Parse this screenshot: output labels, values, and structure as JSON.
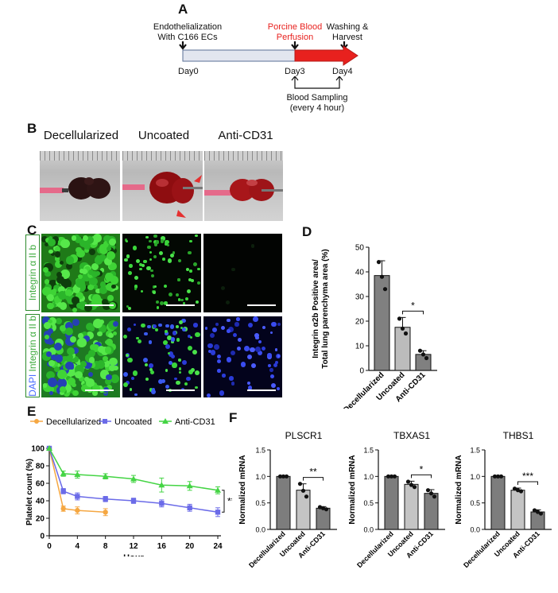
{
  "panels": {
    "a": "A",
    "b": "B",
    "c": "C",
    "d": "D",
    "e": "E",
    "f": "F"
  },
  "timeline": {
    "step1": "Endothelialization\nWith C166 ECs",
    "step2": "Porcine Blood\nPerfusion",
    "step3": "Washing &\nHarvest",
    "day0": "Day0",
    "day3": "Day3",
    "day4": "Day4",
    "sampling": "Blood Sampling\n(every 4 hour)",
    "accent": "#e8211e"
  },
  "photos": {
    "col1": "Decellularized",
    "col2": "Uncoated",
    "col3": "Anti-CD31"
  },
  "micro": {
    "row1_label": "Integrin α II b",
    "row2_dapi": "DAPI",
    "row2_label": "Integrin α II b"
  },
  "chart_data": [
    {
      "id": "D",
      "type": "bar",
      "categories": [
        "Decellularized",
        "Uncoated",
        "Anti-CD31"
      ],
      "values": [
        38.5,
        17.5,
        6.5
      ],
      "errors": [
        6.0,
        4.0,
        1.5
      ],
      "points": [
        [
          44,
          38,
          33
        ],
        [
          21,
          17,
          15
        ],
        [
          8,
          6.5,
          5
        ]
      ],
      "ylabel": "Integrin α2b Positive area/\nTotal lung parenchyma area (%)",
      "ylim": [
        0,
        50
      ],
      "yticks": [
        "0",
        "10",
        "20",
        "30",
        "40",
        "50"
      ],
      "annotation": "*",
      "colors": [
        "#808080",
        "#bcbcbc",
        "#808080"
      ]
    },
    {
      "id": "E",
      "type": "line",
      "xlabel": "Hour",
      "ylabel": "Platelet count (%)",
      "xticks": [
        "0",
        "4",
        "8",
        "12",
        "16",
        "20",
        "24"
      ],
      "yticks": [
        "0",
        "20",
        "40",
        "60",
        "80",
        "100"
      ],
      "xlim": [
        0,
        24
      ],
      "ylim": [
        0,
        100
      ],
      "annotation": "**",
      "series": [
        {
          "name": "Decellularized",
          "color": "#f5a742",
          "x": [
            0,
            2,
            4,
            8
          ],
          "y": [
            100,
            31,
            29,
            27
          ],
          "err": [
            0,
            3,
            4,
            4
          ]
        },
        {
          "name": "Uncoated",
          "color": "#6b6be8",
          "x": [
            0,
            2,
            4,
            8,
            12,
            16,
            20,
            24
          ],
          "y": [
            100,
            51,
            45,
            42,
            40,
            37,
            32,
            27
          ],
          "err": [
            0,
            3,
            4,
            3,
            3,
            4,
            4,
            5
          ]
        },
        {
          "name": "Anti-CD31",
          "color": "#44d444",
          "x": [
            0,
            2,
            4,
            8,
            12,
            16,
            20,
            24
          ],
          "y": [
            100,
            71,
            70,
            68,
            65,
            58,
            57,
            52
          ],
          "err": [
            0,
            3,
            4,
            3,
            4,
            8,
            5,
            4
          ]
        }
      ]
    },
    {
      "id": "F1",
      "type": "bar",
      "title": "PLSCR1",
      "ylabel": "Normalized mRNA",
      "categories": [
        "Decellularized",
        "Uncoated",
        "Anti-CD31"
      ],
      "values": [
        1.0,
        0.74,
        0.4
      ],
      "errors": [
        0.0,
        0.12,
        0.03
      ],
      "points": [
        [
          1,
          1,
          1
        ],
        [
          0.86,
          0.73,
          0.62
        ],
        [
          0.42,
          0.4,
          0.38
        ]
      ],
      "yticks": [
        "0.0",
        "0.5",
        "1.0",
        "1.5"
      ],
      "ylim": [
        0,
        1.5
      ],
      "annotation": "**"
    },
    {
      "id": "F2",
      "type": "bar",
      "title": "TBXAS1",
      "ylabel": "Normalized mRNA",
      "categories": [
        "Decellularized",
        "Uncoated",
        "Anti-CD31"
      ],
      "values": [
        1.0,
        0.85,
        0.68
      ],
      "errors": [
        0.0,
        0.06,
        0.07
      ],
      "points": [
        [
          1,
          1,
          1
        ],
        [
          0.9,
          0.84,
          0.8
        ],
        [
          0.74,
          0.68,
          0.62
        ]
      ],
      "yticks": [
        "0.0",
        "0.5",
        "1.0",
        "1.5"
      ],
      "ylim": [
        0,
        1.5
      ],
      "annotation": "*"
    },
    {
      "id": "F3",
      "type": "bar",
      "title": "THBS1",
      "ylabel": "Normalized mRNA",
      "categories": [
        "Decellularized",
        "Uncoated",
        "Anti-CD31"
      ],
      "values": [
        1.0,
        0.74,
        0.33
      ],
      "errors": [
        0.0,
        0.04,
        0.04
      ],
      "points": [
        [
          1,
          1,
          1
        ],
        [
          0.77,
          0.74,
          0.72
        ],
        [
          0.36,
          0.33,
          0.3
        ]
      ],
      "yticks": [
        "0.0",
        "0.5",
        "1.0",
        "1.5"
      ],
      "ylim": [
        0,
        1.5
      ],
      "annotation": "***"
    }
  ]
}
